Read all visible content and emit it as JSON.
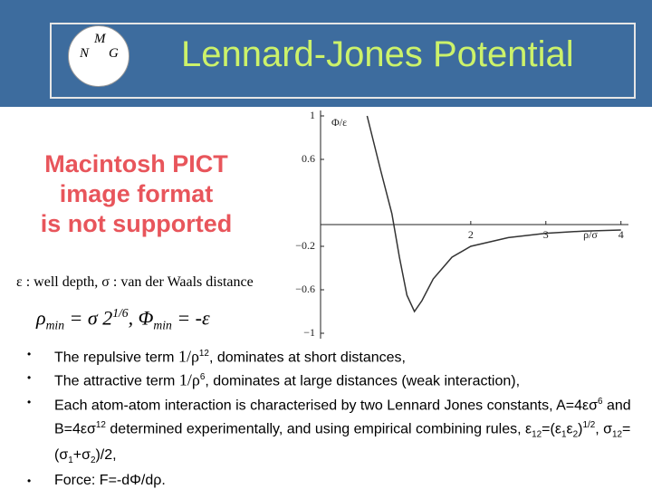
{
  "header": {
    "title": "Lennard-Jones Potential",
    "logo": [
      "M",
      "N",
      "G"
    ]
  },
  "missing_image": [
    "Macintosh PICT",
    "image format",
    "is not supported"
  ],
  "definition": "ε : well depth, σ : van der Waals distance",
  "formula": [
    "ρ",
    "min",
    " = σ 2",
    "1/6",
    ", Φ",
    "min",
    " = -ε"
  ],
  "bullets": [
    [
      "The repulsive term ",
      "1/ρ",
      "12",
      ", dominates at short distances,"
    ],
    [
      "The attractive term ",
      "1/ρ",
      "6",
      ", dominates at large distances (weak interaction),"
    ],
    [
      "Each atom-atom interaction is characterised by two Lennard Jones constants, A=4εσ",
      "6",
      " and B=4εσ",
      "12",
      " determined experimentally, and using empirical combining rules, ε",
      "12",
      "=(ε",
      "1",
      "ε",
      "2",
      ")",
      "1/2",
      ", σ",
      "12",
      "=(σ",
      "1",
      "+σ",
      "2",
      ")/2,"
    ],
    [
      "Force: F=-dΦ/dρ."
    ]
  ],
  "chart_data": {
    "type": "line",
    "x_label": "ρ/σ",
    "y_label": "Φ/ε",
    "x": [
      0.62,
      0.8,
      0.95,
      1.05,
      1.15,
      1.25,
      1.35,
      1.5,
      1.75,
      2,
      2.5,
      3,
      3.5,
      4
    ],
    "series": [
      {
        "color": "#333333",
        "values": [
          1.0,
          0.5,
          0.1,
          -0.3,
          -0.65,
          -0.8,
          -0.7,
          -0.5,
          -0.3,
          -0.2,
          -0.12,
          -0.08,
          -0.06,
          -0.05
        ]
      }
    ],
    "xlim": [
      0,
      4.1
    ],
    "ylim": [
      -1.05,
      1.05
    ],
    "xticks": [
      2,
      3,
      4
    ],
    "yticks": [
      1,
      0.6,
      {
        "value": -0.2,
        "label": "−0.2"
      },
      {
        "value": -0.6,
        "label": "−0.6"
      },
      {
        "value": -1,
        "label": "−1"
      }
    ]
  }
}
